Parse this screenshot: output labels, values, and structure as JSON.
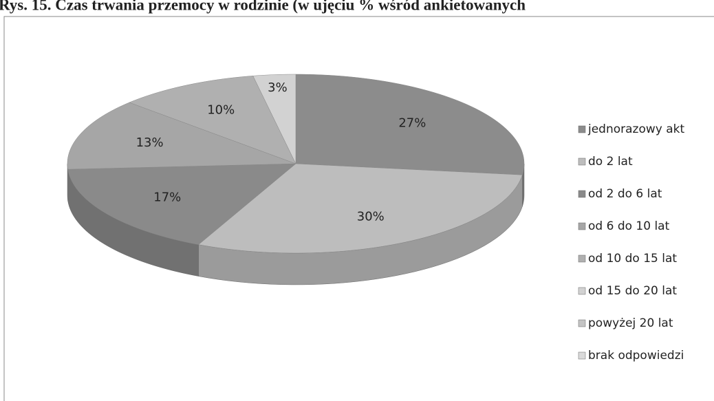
{
  "chart_data": {
    "type": "pie3d",
    "title": "Rys. 15. Czas trwania przemocy w rodzinie (w ujęciu % wśród ankietowanych",
    "categories": [
      "jednorazowy akt",
      "do 2 lat",
      "od 2 do 6 lat",
      "od 6 do 10 lat",
      "od 10 do 15 lat",
      "od 15 do 20 lat",
      "powyżej 20 lat",
      "brak odpowiedzi"
    ],
    "values": [
      27,
      30,
      17,
      13,
      10,
      3,
      0,
      0
    ],
    "value_labels": [
      "27%",
      "30%",
      "17%",
      "13%",
      "10%",
      "3%",
      null,
      null
    ],
    "colors": [
      "#8c8c8c",
      "#bdbdbd",
      "#8a8a8a",
      "#a6a6a6",
      "#b0b0b0",
      "#d2d2d2",
      "#c4c4c4",
      "#dadada"
    ],
    "legend": "right"
  }
}
